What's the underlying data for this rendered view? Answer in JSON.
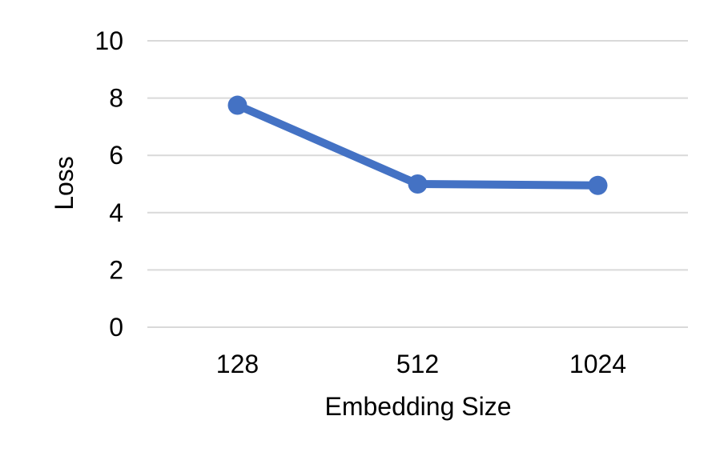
{
  "chart_data": {
    "type": "line",
    "title": "",
    "xlabel": "Embedding Size",
    "ylabel": "Loss",
    "categories": [
      "128",
      "512",
      "1024"
    ],
    "series": [
      {
        "values": [
          7.75,
          5.0,
          4.95
        ]
      }
    ],
    "ylim": [
      0,
      10
    ],
    "yticks": [
      0,
      2,
      4,
      6,
      8,
      10
    ],
    "ytick_labels": [
      "0",
      "2",
      "4",
      "6",
      "8",
      "10"
    ],
    "grid": true,
    "legend": "none",
    "colors": {
      "series": "#4472C4",
      "grid": "#D9D9D9"
    }
  }
}
